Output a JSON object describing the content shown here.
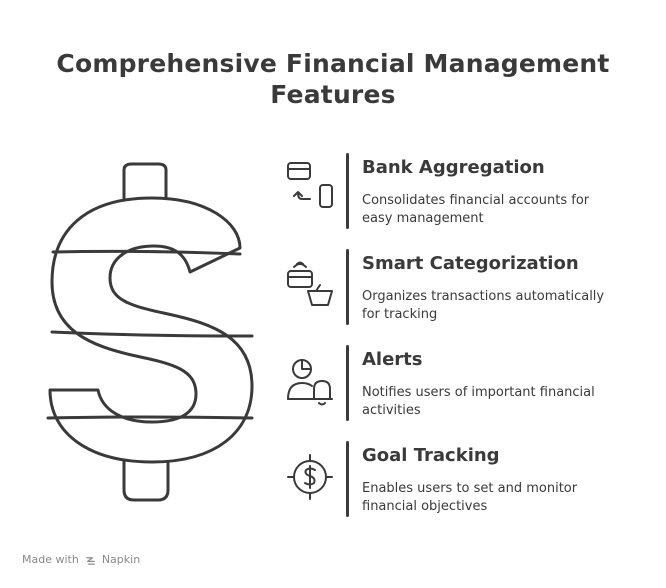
{
  "title": "Comprehensive Financial Management Features",
  "features": [
    {
      "title": "Bank Aggregation",
      "description": "Consolidates financial accounts for easy management",
      "icon": "bank-sync-icon"
    },
    {
      "title": "Smart Categorization",
      "description": "Organizes transactions automatically for tracking",
      "icon": "card-basket-icon"
    },
    {
      "title": "Alerts",
      "description": "Notifies users of important financial activities",
      "icon": "user-bell-icon"
    },
    {
      "title": "Goal Tracking",
      "description": "Enables users to set and monitor financial objectives",
      "icon": "target-dollar-icon"
    }
  ],
  "main_graphic": "dollar-sign-icon",
  "footer": {
    "prefix": "Made with",
    "brand": "Napkin"
  },
  "colors": {
    "ink": "#3a3a3a",
    "muted": "#8a8a8a",
    "background": "#ffffff"
  }
}
